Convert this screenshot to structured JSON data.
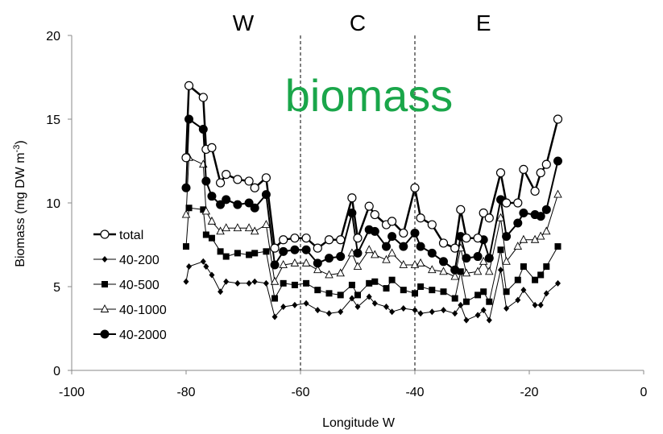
{
  "chart_data": {
    "type": "line",
    "title": "biomass",
    "title_color": "#1aa64a",
    "xlabel": "Longitude W",
    "ylabel": "Biomass (mg DW m",
    "ylabel_sup": "-3",
    "ylabel_end": ")",
    "xlim": [
      -100,
      0
    ],
    "ylim": [
      0,
      20
    ],
    "xticks": [
      -100,
      -80,
      -60,
      -40,
      -20,
      0
    ],
    "yticks": [
      0,
      5,
      10,
      15,
      20
    ],
    "grid": false,
    "legend_position": "left",
    "regions": [
      {
        "label": "W",
        "x": -70
      },
      {
        "label": "C",
        "x": -50
      },
      {
        "label": "E",
        "x": -28
      }
    ],
    "dividers": [
      -60,
      -40
    ],
    "x": [
      -80,
      -79.5,
      -77,
      -76.5,
      -75.5,
      -74,
      -73,
      -71,
      -69,
      -68,
      -66,
      -64.5,
      -63,
      -61,
      -59,
      -57,
      -55,
      -53,
      -51,
      -50,
      -48,
      -47,
      -45,
      -44,
      -42,
      -40,
      -39,
      -37,
      -35,
      -33,
      -32,
      -31,
      -29,
      -28,
      -27,
      -25,
      -24,
      -22,
      -21,
      -19,
      -18,
      -17,
      -15
    ],
    "series": [
      {
        "name": "total",
        "marker": "circle-open",
        "line_width": 2.5,
        "values": [
          12.7,
          17.0,
          16.3,
          13.2,
          13.3,
          11.2,
          11.7,
          11.4,
          11.3,
          10.9,
          11.5,
          7.3,
          7.8,
          7.9,
          7.9,
          7.3,
          7.8,
          7.8,
          10.3,
          7.9,
          9.8,
          9.3,
          8.7,
          8.9,
          8.2,
          10.9,
          9.1,
          8.7,
          7.6,
          7.3,
          9.6,
          7.9,
          7.9,
          9.4,
          9.1,
          11.8,
          10.0,
          10.0,
          12.0,
          10.7,
          11.8,
          12.3,
          15.0
        ]
      },
      {
        "name": "40-200",
        "marker": "diamond",
        "line_width": 1,
        "values": [
          5.3,
          6.2,
          6.5,
          6.2,
          5.7,
          4.7,
          5.3,
          5.2,
          5.2,
          5.3,
          5.2,
          3.2,
          3.8,
          3.9,
          4.0,
          3.6,
          3.4,
          3.5,
          4.3,
          3.8,
          4.4,
          4.0,
          3.8,
          3.5,
          3.7,
          3.6,
          3.4,
          3.5,
          3.6,
          3.4,
          3.9,
          3.0,
          3.3,
          3.6,
          3.0,
          6.0,
          3.7,
          4.2,
          4.8,
          3.9,
          3.9,
          4.6,
          5.2
        ]
      },
      {
        "name": "40-500",
        "marker": "square",
        "line_width": 1,
        "values": [
          7.4,
          9.7,
          9.6,
          8.1,
          7.9,
          7.1,
          6.8,
          7.0,
          6.9,
          7.0,
          7.1,
          4.3,
          5.2,
          5.1,
          5.2,
          4.8,
          4.6,
          4.5,
          5.1,
          4.5,
          5.2,
          5.3,
          4.9,
          5.4,
          4.8,
          4.6,
          5.0,
          4.8,
          4.7,
          4.3,
          5.9,
          4.1,
          4.5,
          4.7,
          4.1,
          7.2,
          4.7,
          5.4,
          6.2,
          5.4,
          5.7,
          6.2,
          7.4
        ]
      },
      {
        "name": "40-1000",
        "marker": "triangle-open",
        "line_width": 1,
        "values": [
          9.3,
          12.7,
          12.3,
          9.5,
          8.9,
          8.3,
          8.5,
          8.5,
          8.5,
          8.3,
          8.7,
          5.3,
          6.3,
          6.4,
          6.4,
          6.0,
          5.7,
          5.8,
          7.0,
          6.2,
          7.2,
          6.9,
          6.6,
          7.0,
          6.3,
          6.3,
          6.4,
          6.0,
          5.9,
          5.6,
          7.3,
          5.8,
          5.9,
          6.5,
          5.9,
          9.1,
          6.5,
          7.4,
          7.8,
          7.8,
          8.0,
          8.3,
          10.5
        ]
      },
      {
        "name": "40-2000",
        "marker": "circle-filled",
        "line_width": 2,
        "values": [
          10.9,
          15.0,
          14.4,
          11.3,
          10.4,
          9.9,
          10.2,
          9.9,
          10.0,
          9.7,
          10.5,
          6.3,
          7.1,
          7.2,
          7.2,
          6.4,
          6.7,
          6.8,
          9.4,
          7.0,
          8.4,
          8.3,
          7.4,
          8.0,
          7.4,
          8.2,
          7.4,
          7.0,
          6.5,
          6.0,
          8.0,
          6.7,
          6.8,
          7.8,
          6.7,
          10.2,
          8.0,
          8.8,
          9.4,
          9.3,
          9.2,
          9.6,
          12.5
        ]
      }
    ]
  }
}
